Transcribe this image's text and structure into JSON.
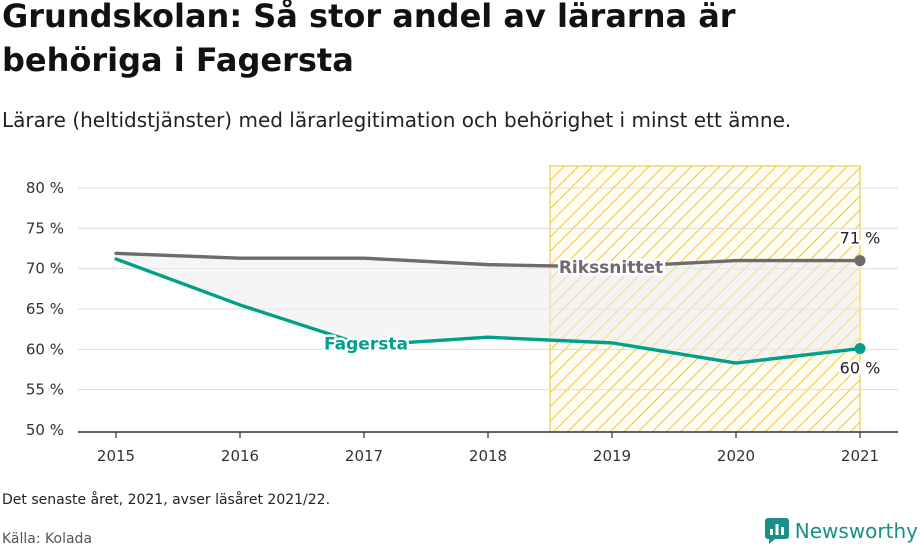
{
  "header": {
    "title": "Grundskolan: Så stor andel av lärarna är behöriga i Fagersta",
    "subtitle": "Lärare (heltidstjänster) med lärarlegitimation och behörighet i minst ett ämne."
  },
  "footer": {
    "note": "Det senaste året, 2021, avser läsåret 2021/22.",
    "source": "Källa: Kolada",
    "brand": "Newsworthy"
  },
  "colors": {
    "riket": "#6e6a6f",
    "fagersta": "#00a08a",
    "hatch": "#f5c842",
    "fill": "#ececec"
  },
  "chart_data": {
    "type": "line",
    "x": [
      2015,
      2016,
      2017,
      2018,
      2019,
      2020,
      2021
    ],
    "xticks": [
      "2015",
      "2016",
      "2017",
      "2018",
      "2019",
      "2020",
      "2021"
    ],
    "yticks": [
      "80 %",
      "75 %",
      "70 %",
      "65 %",
      "60 %",
      "55 %",
      "50 %"
    ],
    "ylim": [
      50,
      80
    ],
    "highlight_range": [
      2018.5,
      2021
    ],
    "series": [
      {
        "name": "Rikssnittet",
        "values": [
          71.9,
          71.3,
          71.3,
          70.5,
          70.2,
          71.0,
          71.0
        ],
        "end_label": "71 %"
      },
      {
        "name": "Fagersta",
        "values": [
          71.2,
          65.5,
          60.5,
          61.5,
          60.8,
          58.3,
          60.1
        ],
        "end_label": "60 %"
      }
    ]
  }
}
